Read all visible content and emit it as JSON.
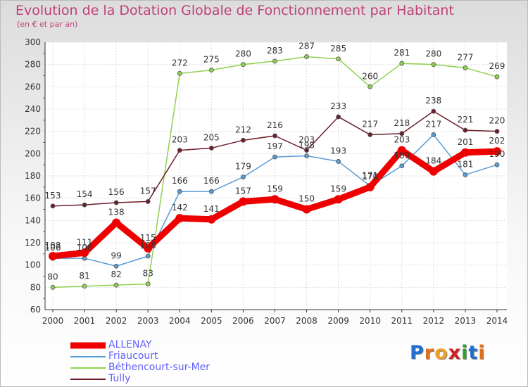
{
  "header": {
    "title": "Evolution de la Dotation Globale de Fonctionnement par Habitant",
    "subtitle": "(en € et par an)"
  },
  "logo": {
    "text": "Proxiti",
    "letters": [
      "P",
      "r",
      "o",
      "x",
      "i",
      "t",
      "i"
    ],
    "colors": [
      "#1f6fd0",
      "#e07020",
      "#f0a020",
      "#d02020",
      "#30a030",
      "#1f6fd0",
      "#e07020"
    ]
  },
  "chart_data": {
    "type": "line",
    "title": "Evolution de la Dotation Globale de Fonctionnement par Habitant",
    "subtitle": "(en € et par an)",
    "xlabel": "",
    "ylabel": "",
    "x": [
      "2000",
      "2001",
      "2002",
      "2003",
      "2004",
      "2005",
      "2006",
      "2007",
      "2008",
      "2009",
      "2010",
      "2011",
      "2012",
      "2013",
      "2014"
    ],
    "ylim": [
      60,
      300
    ],
    "yticks": [
      "60",
      "80",
      "100",
      "120",
      "140",
      "160",
      "180",
      "200",
      "220",
      "240",
      "260",
      "280",
      "300"
    ],
    "grid": true,
    "legend_position": "bottom-left",
    "series": [
      {
        "name": "ALLENAY",
        "color": "#ee0000",
        "values": [
          108,
          111,
          138,
          115,
          142,
          141,
          157,
          159,
          150,
          159,
          170,
          203,
          184,
          201,
          202
        ],
        "labels": [
          "108",
          "111",
          "138",
          "115",
          "142",
          "141",
          "157",
          "159",
          "150",
          "159",
          "170",
          "203",
          "184",
          "201",
          "202"
        ]
      },
      {
        "name": "Friaucourt",
        "color": "#5b9bd5",
        "values": [
          106,
          106,
          99,
          108,
          166,
          166,
          179,
          197,
          198,
          193,
          171,
          189,
          217,
          181,
          190
        ],
        "labels": [
          "106",
          "106",
          "99",
          "108",
          "166",
          "166",
          "179",
          "197",
          "198",
          "193",
          "171",
          "189",
          "217",
          "181",
          "190"
        ]
      },
      {
        "name": "Béthencourt-sur-Mer",
        "color": "#8fd14f",
        "values": [
          80,
          81,
          82,
          83,
          272,
          275,
          280,
          283,
          287,
          285,
          260,
          281,
          280,
          277,
          269
        ],
        "labels": [
          "80",
          "81",
          "82",
          "83",
          "272",
          "275",
          "280",
          "283",
          "287",
          "285",
          "260",
          "281",
          "280",
          "277",
          "269"
        ]
      },
      {
        "name": "Tully",
        "color": "#6b1e2a",
        "values": [
          153,
          154,
          156,
          157,
          203,
          205,
          212,
          216,
          203,
          233,
          217,
          218,
          238,
          221,
          220
        ],
        "labels": [
          "153",
          "154",
          "156",
          "157",
          "203",
          "205",
          "212",
          "216",
          "203",
          "233",
          "217",
          "218",
          "238",
          "221",
          "220"
        ]
      }
    ]
  }
}
